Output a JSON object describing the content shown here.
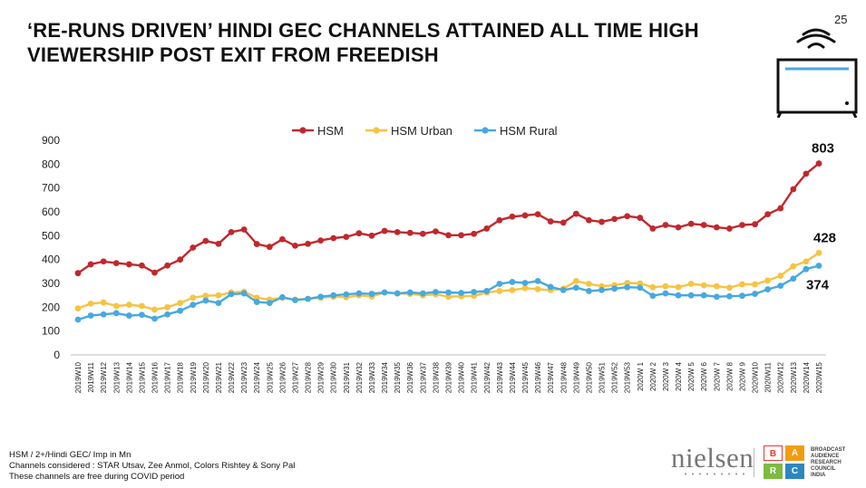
{
  "title": "‘RE-RUNS DRIVEN’ HINDI GEC CHANNELS ATTAINED ALL TIME HIGH VIEWERSHIP POST EXIT FROM FREEDISH",
  "page_number": "25",
  "notes": [
    "HSM / 2+/Hindi GEC/ Imp in Mn",
    "Channels considered : STAR Utsav, Zee Anmol, Colors Rishtey & Sony Pal",
    "These channels are free during COVID period"
  ],
  "logos": {
    "nielsen": "nielsen",
    "barc_letters": [
      "B",
      "A",
      "R",
      "C"
    ],
    "barc_text": [
      "BROADCAST",
      "AUDIENCE",
      "RESEARCH",
      "COUNCIL",
      "INDIA"
    ]
  },
  "colors": {
    "hsm": "#c0282d",
    "hsm_urban": "#f6c343",
    "hsm_rural": "#47a9e0",
    "tv_accent": "#47a9e0",
    "barc_b": "#e63b2e",
    "barc_a": "#f39c12",
    "barc_r": "#7dbb42",
    "barc_c": "#2e86c1"
  },
  "chart_data": {
    "type": "line",
    "ylim": [
      0,
      900
    ],
    "yticks": [
      0,
      100,
      200,
      300,
      400,
      500,
      600,
      700,
      800,
      900
    ],
    "legend_position": "top-center",
    "grid": false,
    "categories": [
      "2019W10",
      "2019W11",
      "2019W12",
      "2019W13",
      "2019W14",
      "2019W15",
      "2019W16",
      "2019W17",
      "2019W18",
      "2019W19",
      "2019W20",
      "2019W21",
      "2019W22",
      "2019W23",
      "2019W24",
      "2019W25",
      "2019W26",
      "2019W27",
      "2019W28",
      "2019W29",
      "2019W30",
      "2019W31",
      "2019W32",
      "2019W33",
      "2019W34",
      "2019W35",
      "2019W36",
      "2019W37",
      "2019W38",
      "2019W39",
      "2019W40",
      "2019W41",
      "2019W42",
      "2019W43",
      "2019W44",
      "2019W45",
      "2019W46",
      "2019W47",
      "2019W48",
      "2019W49",
      "2019W50",
      "2019W51",
      "2019W52",
      "2019W53",
      "2020W 1",
      "2020W 2",
      "2020W 3",
      "2020W 4",
      "2020W 5",
      "2020W 6",
      "2020W 7",
      "2020W 8",
      "2020W 9",
      "2020W10",
      "2020W11",
      "2020W12",
      "2020W13",
      "2020W14",
      "2020W15"
    ],
    "series": [
      {
        "name": "HSM",
        "values": [
          343,
          380,
          392,
          385,
          380,
          375,
          345,
          375,
          400,
          450,
          478,
          466,
          515,
          526,
          465,
          453,
          485,
          458,
          466,
          480,
          490,
          495,
          510,
          500,
          520,
          515,
          512,
          508,
          518,
          502,
          502,
          508,
          530,
          565,
          580,
          585,
          590,
          560,
          555,
          592,
          565,
          558,
          570,
          582,
          575,
          530,
          545,
          535,
          550,
          545,
          535,
          530,
          545,
          548,
          590,
          615,
          695,
          760,
          803
        ]
      },
      {
        "name": "HSM Urban",
        "values": [
          195,
          215,
          220,
          205,
          210,
          205,
          190,
          200,
          218,
          240,
          248,
          250,
          262,
          265,
          240,
          232,
          240,
          232,
          235,
          240,
          244,
          242,
          250,
          245,
          262,
          258,
          256,
          250,
          254,
          244,
          246,
          248,
          262,
          268,
          272,
          280,
          276,
          272,
          278,
          310,
          298,
          288,
          292,
          302,
          300,
          284,
          288,
          284,
          298,
          292,
          288,
          282,
          296,
          296,
          312,
          332,
          372,
          392,
          428
        ]
      },
      {
        "name": "HSM Rural",
        "values": [
          148,
          165,
          170,
          175,
          165,
          168,
          152,
          170,
          185,
          210,
          228,
          218,
          255,
          258,
          222,
          218,
          242,
          230,
          235,
          244,
          250,
          254,
          258,
          256,
          262,
          258,
          262,
          258,
          264,
          262,
          260,
          264,
          268,
          298,
          306,
          302,
          310,
          285,
          272,
          282,
          268,
          272,
          278,
          284,
          282,
          248,
          258,
          250,
          250,
          250,
          244,
          246,
          248,
          256,
          275,
          290,
          320,
          360,
          374
        ]
      }
    ],
    "data_labels": [
      {
        "series": "HSM",
        "category": "2020W15",
        "text": "803"
      },
      {
        "series": "HSM Urban",
        "category": "2020W15",
        "text": "428"
      },
      {
        "series": "HSM Rural",
        "category": "2020W15",
        "text": "374"
      }
    ]
  }
}
